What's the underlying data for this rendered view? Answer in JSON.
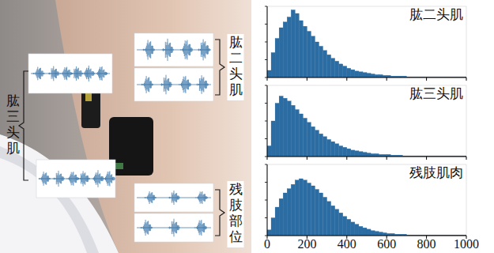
{
  "chart_data": [
    {
      "type": "histogram",
      "title": "肱二头肌",
      "color": "#2b6ca3",
      "bins": [
        0,
        20,
        40,
        60,
        80,
        100,
        120,
        140,
        160,
        180,
        200,
        220,
        240,
        260,
        280,
        300,
        320,
        340,
        360,
        380,
        400,
        420,
        440,
        460,
        480,
        500,
        520,
        540,
        560,
        580,
        600,
        620,
        640,
        660,
        680,
        700,
        720,
        740,
        760,
        780,
        800,
        820,
        840,
        860,
        880,
        900,
        920,
        940,
        960,
        980,
        1000
      ],
      "counts": [
        10,
        35,
        55,
        70,
        78,
        85,
        95,
        90,
        80,
        72,
        65,
        58,
        50,
        44,
        38,
        32,
        27,
        23,
        19,
        16,
        13,
        11,
        9,
        8,
        7,
        6,
        5,
        4,
        4,
        3,
        3,
        2,
        2,
        2,
        2,
        1,
        1,
        1,
        1,
        1,
        1,
        1,
        1,
        1,
        1,
        1,
        1,
        1,
        1,
        1
      ],
      "xlim": [
        0,
        1000
      ],
      "ylim": [
        0,
        100
      ],
      "xticks": [
        0,
        200,
        400,
        600,
        800,
        1000
      ],
      "yticks": [
        0,
        25,
        50,
        75,
        100
      ],
      "tick_labels": false
    },
    {
      "type": "histogram",
      "title": "肱三头肌",
      "color": "#2b6ca3",
      "bins": [
        0,
        20,
        40,
        60,
        80,
        100,
        120,
        140,
        160,
        180,
        200,
        220,
        240,
        260,
        280,
        300,
        320,
        340,
        360,
        380,
        400,
        420,
        440,
        460,
        480,
        500,
        520,
        540,
        560,
        580,
        600,
        620,
        640,
        660,
        680,
        700,
        720,
        740,
        760,
        780,
        800,
        820,
        840,
        860,
        880,
        900,
        920,
        940,
        960,
        980,
        1000
      ],
      "counts": [
        15,
        50,
        75,
        85,
        82,
        78,
        72,
        66,
        60,
        54,
        48,
        42,
        37,
        32,
        28,
        24,
        21,
        18,
        15,
        13,
        11,
        9,
        8,
        7,
        6,
        5,
        4,
        4,
        3,
        3,
        3,
        2,
        2,
        2,
        1,
        1,
        1,
        1,
        1,
        1,
        1,
        1,
        1,
        1,
        1,
        1,
        1,
        1,
        1,
        1
      ],
      "xlim": [
        0,
        1000
      ],
      "ylim": [
        0,
        100
      ],
      "xticks": [
        0,
        200,
        400,
        600,
        800,
        1000
      ],
      "yticks": [
        0,
        25,
        50,
        75,
        100
      ],
      "tick_labels": false
    },
    {
      "type": "histogram",
      "title": "残肢肌肉",
      "color": "#2b6ca3",
      "bins": [
        0,
        20,
        40,
        60,
        80,
        100,
        120,
        140,
        160,
        180,
        200,
        220,
        240,
        260,
        280,
        300,
        320,
        340,
        360,
        380,
        400,
        420,
        440,
        460,
        480,
        500,
        520,
        540,
        560,
        580,
        600,
        620,
        640,
        660,
        680,
        700,
        720,
        740,
        760,
        780,
        800,
        820,
        840,
        860,
        880,
        900,
        920,
        940,
        960,
        980,
        1000
      ],
      "counts": [
        8,
        25,
        40,
        52,
        60,
        66,
        72,
        78,
        80,
        78,
        74,
        70,
        65,
        60,
        54,
        48,
        42,
        37,
        32,
        27,
        23,
        19,
        16,
        13,
        11,
        9,
        7,
        6,
        5,
        4,
        3,
        3,
        2,
        2,
        2,
        1,
        1,
        1,
        1,
        1,
        1,
        1,
        1,
        1,
        1,
        1,
        1,
        1,
        1,
        1
      ],
      "xlim": [
        0,
        1000
      ],
      "ylim": [
        0,
        100
      ],
      "xticks": [
        0,
        200,
        400,
        600,
        800,
        1000
      ],
      "yticks": [
        0,
        25,
        50,
        75,
        100
      ],
      "tick_labels": "x"
    }
  ],
  "photo": {
    "left_label": "肱三头肌",
    "right_top_label": "肱二头肌",
    "right_bottom_label": "残肢部位"
  }
}
